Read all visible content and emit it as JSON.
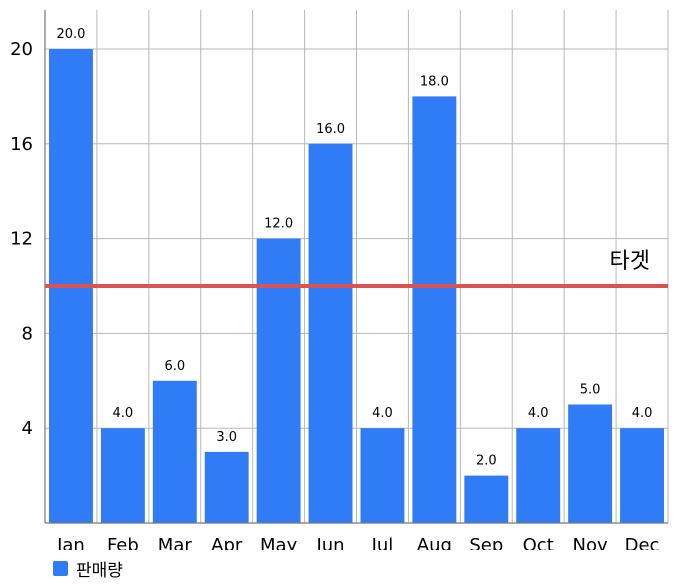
{
  "chart_data": {
    "type": "bar",
    "categories": [
      "Jan",
      "Feb",
      "Mar",
      "Apr",
      "May",
      "Jun",
      "Jul",
      "Aug",
      "Sep",
      "Oct",
      "Nov",
      "Dec"
    ],
    "series": [
      {
        "name": "판매량",
        "values": [
          20.0,
          4.0,
          6.0,
          3.0,
          12.0,
          16.0,
          4.0,
          18.0,
          2.0,
          4.0,
          5.0,
          4.0
        ]
      }
    ],
    "data_labels": [
      "20.0",
      "4.0",
      "6.0",
      "3.0",
      "12.0",
      "16.0",
      "4.0",
      "18.0",
      "2.0",
      "4.0",
      "5.0",
      "4.0"
    ],
    "y_ticks": [
      4,
      8,
      12,
      16,
      20
    ],
    "ylim": [
      0,
      21
    ],
    "grid": true,
    "reference_line": {
      "value": 10,
      "label": "타겟",
      "color": "#d9534f"
    },
    "bar_color": "#2f7cf6",
    "legend_position": "bottom-left"
  }
}
